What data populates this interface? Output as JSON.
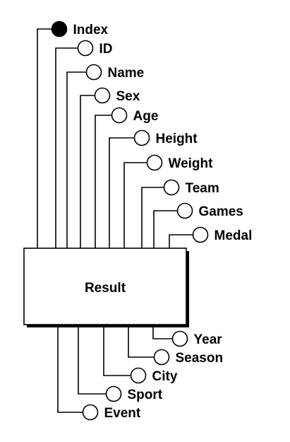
{
  "diagram": {
    "title": "Result",
    "inputs": [
      {
        "label": "Index",
        "filled": true
      },
      {
        "label": "ID",
        "filled": false
      },
      {
        "label": "Name",
        "filled": false
      },
      {
        "label": "Sex",
        "filled": false
      },
      {
        "label": "Age",
        "filled": false
      },
      {
        "label": "Height",
        "filled": false
      },
      {
        "label": "Weight",
        "filled": false
      },
      {
        "label": "Team",
        "filled": false
      },
      {
        "label": "Games",
        "filled": false
      },
      {
        "label": "Medal",
        "filled": false
      }
    ],
    "outputs": [
      {
        "label": "Year",
        "filled": false
      },
      {
        "label": "Season",
        "filled": false
      },
      {
        "label": "City",
        "filled": false
      },
      {
        "label": "Sport",
        "filled": false
      },
      {
        "label": "Event",
        "filled": false
      }
    ]
  }
}
